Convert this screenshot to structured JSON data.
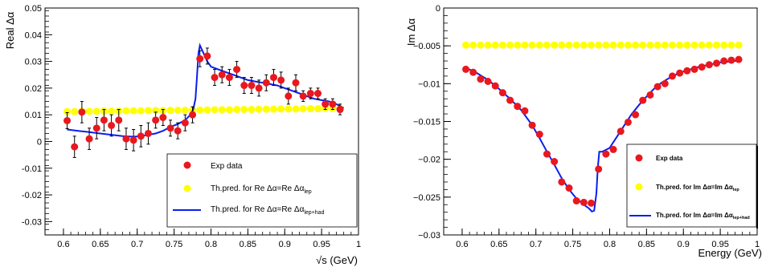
{
  "chart_data": [
    {
      "type": "scatter",
      "ylabel": "Real Δα",
      "xlabel": "√s (GeV)",
      "xlim": [
        0.575,
        1.0
      ],
      "ylim": [
        -0.035,
        0.05
      ],
      "xticks": [
        "0.6",
        "0.65",
        "0.7",
        "0.75",
        "0.8",
        "0.85",
        "0.9",
        "0.95",
        "1"
      ],
      "yticks": [
        "-0.03",
        "-0.02",
        "-0.01",
        "0",
        "0.01",
        "0.02",
        "0.03",
        "0.04",
        "0.05"
      ],
      "grid": false,
      "legend_position": "bottom-right",
      "legend": {
        "exp": "Exp data",
        "lep_prefix": "Th.pred. for Re Δα=Re Δα",
        "lep_sub": "lep",
        "had_prefix": "Th.pred. for Re Δα=Re Δα",
        "had_sub": "lep+had"
      },
      "colors": {
        "exp": "#e8181e",
        "lep": "#ffff00",
        "had": "#0a1ef0"
      },
      "series": [
        {
          "name": "Exp data",
          "kind": "points_with_errors",
          "x": [
            0.605,
            0.615,
            0.625,
            0.635,
            0.645,
            0.655,
            0.665,
            0.675,
            0.685,
            0.695,
            0.705,
            0.715,
            0.725,
            0.735,
            0.745,
            0.755,
            0.765,
            0.775,
            0.785,
            0.795,
            0.805,
            0.815,
            0.825,
            0.835,
            0.845,
            0.855,
            0.865,
            0.875,
            0.885,
            0.895,
            0.905,
            0.915,
            0.925,
            0.935,
            0.945,
            0.955,
            0.965,
            0.975
          ],
          "y": [
            0.0078,
            -0.002,
            0.011,
            0.001,
            0.005,
            0.008,
            0.006,
            0.008,
            0.001,
            0.0005,
            0.002,
            0.003,
            0.008,
            0.009,
            0.005,
            0.004,
            0.007,
            0.01,
            0.031,
            0.032,
            0.024,
            0.025,
            0.024,
            0.027,
            0.021,
            0.021,
            0.02,
            0.022,
            0.024,
            0.023,
            0.017,
            0.022,
            0.017,
            0.018,
            0.018,
            0.014,
            0.014,
            0.012
          ],
          "err": [
            0.003,
            0.004,
            0.004,
            0.004,
            0.004,
            0.004,
            0.004,
            0.004,
            0.004,
            0.004,
            0.004,
            0.004,
            0.003,
            0.003,
            0.003,
            0.003,
            0.003,
            0.003,
            0.003,
            0.003,
            0.003,
            0.003,
            0.003,
            0.003,
            0.003,
            0.003,
            0.003,
            0.003,
            0.003,
            0.003,
            0.003,
            0.003,
            0.002,
            0.002,
            0.002,
            0.002,
            0.002,
            0.002
          ]
        },
        {
          "name": "Th.pred. for Re Δα=Re Δαlep",
          "kind": "points",
          "x": [
            0.605,
            0.615,
            0.625,
            0.635,
            0.645,
            0.655,
            0.665,
            0.675,
            0.685,
            0.695,
            0.705,
            0.715,
            0.725,
            0.735,
            0.745,
            0.755,
            0.765,
            0.775,
            0.785,
            0.795,
            0.805,
            0.815,
            0.825,
            0.835,
            0.845,
            0.855,
            0.865,
            0.875,
            0.885,
            0.895,
            0.905,
            0.915,
            0.925,
            0.935,
            0.945,
            0.955,
            0.965,
            0.975
          ],
          "y": [
            0.0112,
            0.0112,
            0.0113,
            0.0113,
            0.0113,
            0.0114,
            0.0114,
            0.0114,
            0.0115,
            0.0115,
            0.0115,
            0.0116,
            0.0116,
            0.0116,
            0.0117,
            0.0117,
            0.0117,
            0.0118,
            0.0118,
            0.0118,
            0.0119,
            0.0119,
            0.0119,
            0.012,
            0.012,
            0.012,
            0.0121,
            0.0121,
            0.0121,
            0.0122,
            0.0122,
            0.0122,
            0.0123,
            0.0123,
            0.0123,
            0.0124,
            0.0124,
            0.0124
          ]
        },
        {
          "name": "Th.pred. for Re Δα=Re Δαlep+had",
          "kind": "line",
          "x": [
            0.605,
            0.62,
            0.635,
            0.65,
            0.665,
            0.68,
            0.695,
            0.705,
            0.715,
            0.725,
            0.735,
            0.745,
            0.755,
            0.765,
            0.772,
            0.776,
            0.779,
            0.781,
            0.783,
            0.785,
            0.79,
            0.795,
            0.8,
            0.81,
            0.82,
            0.83,
            0.84,
            0.85,
            0.86,
            0.87,
            0.88,
            0.89,
            0.9,
            0.91,
            0.92,
            0.93,
            0.94,
            0.95,
            0.96,
            0.97,
            0.98
          ],
          "y": [
            0.0045,
            0.004,
            0.0035,
            0.003,
            0.0025,
            0.002,
            0.0018,
            0.002,
            0.0025,
            0.003,
            0.004,
            0.0055,
            0.0065,
            0.008,
            0.01,
            0.012,
            0.016,
            0.024,
            0.033,
            0.036,
            0.033,
            0.03,
            0.028,
            0.027,
            0.026,
            0.025,
            0.024,
            0.023,
            0.0225,
            0.022,
            0.0215,
            0.021,
            0.02,
            0.019,
            0.018,
            0.017,
            0.016,
            0.0155,
            0.015,
            0.014,
            0.0125
          ]
        }
      ]
    },
    {
      "type": "scatter",
      "ylabel": "Im Δα",
      "xlabel": "Energy (GeV)",
      "xlim": [
        0.575,
        1.0
      ],
      "ylim": [
        -0.03,
        0.0
      ],
      "xticks": [
        "0.6",
        "0.65",
        "0.7",
        "0.75",
        "0.8",
        "0.85",
        "0.9",
        "0.95",
        "1"
      ],
      "yticks": [
        "−0.03",
        "−0.025",
        "−0.02",
        "−0.015",
        "−0.01",
        "−0.005",
        "0"
      ],
      "grid": false,
      "legend_position": "bottom-right",
      "legend": {
        "exp": "Exp data",
        "lep_prefix": "Th.pred. for Im  Δα=Im  Δα",
        "lep_sub": "lep",
        "had_prefix": "Th.pred. for Im  Δα=Im  Δα",
        "had_sub": "lep+had"
      },
      "colors": {
        "exp": "#e8181e",
        "lep": "#ffff00",
        "had": "#0a1ef0"
      },
      "series": [
        {
          "name": "Exp data",
          "kind": "points",
          "x": [
            0.605,
            0.615,
            0.625,
            0.635,
            0.645,
            0.655,
            0.665,
            0.675,
            0.685,
            0.695,
            0.705,
            0.715,
            0.725,
            0.735,
            0.745,
            0.755,
            0.765,
            0.775,
            0.785,
            0.795,
            0.805,
            0.815,
            0.825,
            0.835,
            0.845,
            0.855,
            0.865,
            0.875,
            0.885,
            0.895,
            0.905,
            0.915,
            0.925,
            0.935,
            0.945,
            0.955,
            0.965,
            0.975
          ],
          "y": [
            -0.0081,
            -0.0085,
            -0.0094,
            -0.0097,
            -0.0103,
            -0.0112,
            -0.0122,
            -0.013,
            -0.0136,
            -0.0155,
            -0.0167,
            -0.0193,
            -0.0203,
            -0.023,
            -0.0238,
            -0.0255,
            -0.0257,
            -0.0258,
            -0.0213,
            -0.0193,
            -0.0187,
            -0.0163,
            -0.0151,
            -0.0141,
            -0.0122,
            -0.0115,
            -0.0104,
            -0.01,
            -0.009,
            -0.0086,
            -0.0083,
            -0.0081,
            -0.0078,
            -0.0075,
            -0.0073,
            -0.007,
            -0.0069,
            -0.0068
          ]
        },
        {
          "name": "Th.pred. for Im  Δα=Im  Δαlep",
          "kind": "points",
          "x": [
            0.605,
            0.615,
            0.625,
            0.635,
            0.645,
            0.655,
            0.665,
            0.675,
            0.685,
            0.695,
            0.705,
            0.715,
            0.725,
            0.735,
            0.745,
            0.755,
            0.765,
            0.775,
            0.785,
            0.795,
            0.805,
            0.815,
            0.825,
            0.835,
            0.845,
            0.855,
            0.865,
            0.875,
            0.885,
            0.895,
            0.905,
            0.915,
            0.925,
            0.935,
            0.945,
            0.955,
            0.965,
            0.975
          ],
          "y": [
            -0.0049,
            -0.0049,
            -0.0049,
            -0.0049,
            -0.0049,
            -0.0049,
            -0.0049,
            -0.0049,
            -0.0049,
            -0.0049,
            -0.0049,
            -0.0049,
            -0.0049,
            -0.0049,
            -0.0049,
            -0.0049,
            -0.0049,
            -0.0049,
            -0.0049,
            -0.0049,
            -0.0049,
            -0.0049,
            -0.0049,
            -0.0049,
            -0.0049,
            -0.0049,
            -0.0049,
            -0.0049,
            -0.0049,
            -0.0049,
            -0.0049,
            -0.0049,
            -0.0049,
            -0.0049,
            -0.0049,
            -0.0049,
            -0.0049,
            -0.0049
          ]
        },
        {
          "name": "Th.pred. for Im  Δα=Im  Δαlep+had",
          "kind": "line",
          "x": [
            0.605,
            0.62,
            0.635,
            0.65,
            0.665,
            0.68,
            0.695,
            0.705,
            0.715,
            0.725,
            0.735,
            0.745,
            0.755,
            0.765,
            0.772,
            0.776,
            0.779,
            0.782,
            0.784,
            0.786,
            0.79,
            0.8,
            0.81,
            0.82,
            0.83,
            0.84,
            0.85,
            0.86,
            0.87,
            0.88,
            0.89,
            0.9,
            0.91,
            0.92,
            0.93,
            0.94,
            0.95,
            0.96,
            0.97,
            0.975
          ],
          "y": [
            -0.0079,
            -0.0086,
            -0.0095,
            -0.0107,
            -0.012,
            -0.0135,
            -0.0155,
            -0.0172,
            -0.019,
            -0.0207,
            -0.0225,
            -0.024,
            -0.0252,
            -0.026,
            -0.0265,
            -0.0269,
            -0.0268,
            -0.0245,
            -0.021,
            -0.019,
            -0.019,
            -0.0185,
            -0.017,
            -0.0155,
            -0.014,
            -0.0128,
            -0.0117,
            -0.0107,
            -0.0099,
            -0.0093,
            -0.0088,
            -0.0084,
            -0.0081,
            -0.0078,
            -0.0076,
            -0.0074,
            -0.0072,
            -0.0071,
            -0.007,
            -0.0069
          ]
        }
      ]
    }
  ]
}
